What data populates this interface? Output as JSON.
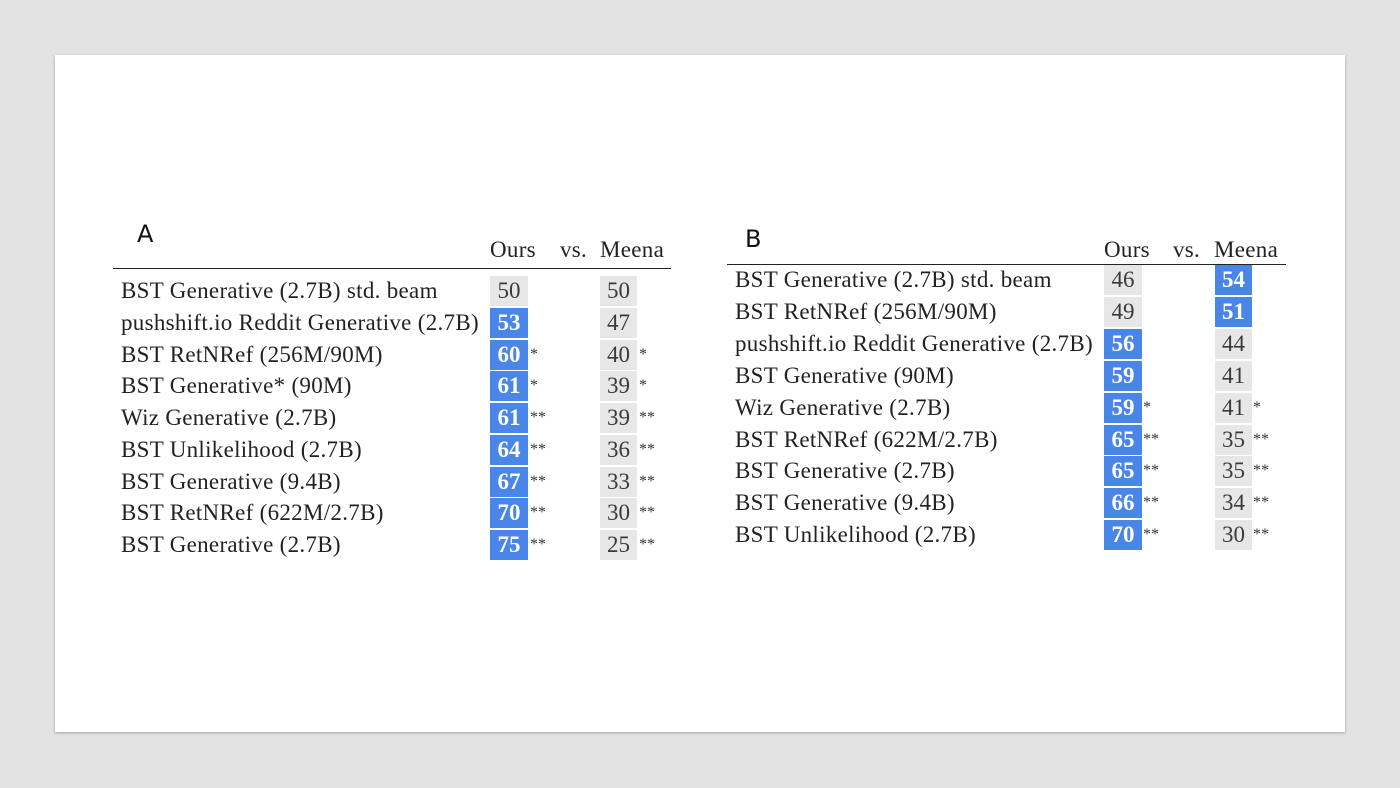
{
  "colors": {
    "background": "#e3e3e3",
    "card": "#ffffff",
    "highlight": "#4a86e8",
    "neutral": "#e7e7e7"
  },
  "table_a": {
    "label": "A",
    "headers": {
      "ours": "Ours",
      "vs": "vs.",
      "meena": "Meena"
    },
    "rows": [
      {
        "model": "BST Generative (2.7B) std. beam",
        "ours": 50,
        "meena": 50,
        "sig": "",
        "highlight": "none"
      },
      {
        "model": "pushshift.io Reddit Generative (2.7B)",
        "ours": 53,
        "meena": 47,
        "sig": "",
        "highlight": "ours"
      },
      {
        "model": "BST RetNRef (256M/90M)",
        "ours": 60,
        "meena": 40,
        "sig": "*",
        "highlight": "ours"
      },
      {
        "model": "BST Generative* (90M)",
        "ours": 61,
        "meena": 39,
        "sig": "*",
        "highlight": "ours"
      },
      {
        "model": "Wiz Generative (2.7B)",
        "ours": 61,
        "meena": 39,
        "sig": "**",
        "highlight": "ours"
      },
      {
        "model": "BST Unlikelihood (2.7B)",
        "ours": 64,
        "meena": 36,
        "sig": "**",
        "highlight": "ours"
      },
      {
        "model": "BST Generative (9.4B)",
        "ours": 67,
        "meena": 33,
        "sig": "**",
        "highlight": "ours"
      },
      {
        "model": "BST RetNRef (622M/2.7B)",
        "ours": 70,
        "meena": 30,
        "sig": "**",
        "highlight": "ours"
      },
      {
        "model": "BST Generative (2.7B)",
        "ours": 75,
        "meena": 25,
        "sig": "**",
        "highlight": "ours"
      }
    ]
  },
  "table_b": {
    "label": "B",
    "headers": {
      "ours": "Ours",
      "vs": "vs.",
      "meena": "Meena"
    },
    "rows": [
      {
        "model": "BST Generative (2.7B) std. beam",
        "ours": 46,
        "meena": 54,
        "sig": "",
        "highlight": "meena"
      },
      {
        "model": "BST RetNRef (256M/90M)",
        "ours": 49,
        "meena": 51,
        "sig": "",
        "highlight": "meena"
      },
      {
        "model": "pushshift.io Reddit Generative (2.7B)",
        "ours": 56,
        "meena": 44,
        "sig": "",
        "highlight": "ours"
      },
      {
        "model": "BST Generative (90M)",
        "ours": 59,
        "meena": 41,
        "sig": "",
        "highlight": "ours"
      },
      {
        "model": "Wiz Generative (2.7B)",
        "ours": 59,
        "meena": 41,
        "sig": "*",
        "highlight": "ours"
      },
      {
        "model": "BST RetNRef (622M/2.7B)",
        "ours": 65,
        "meena": 35,
        "sig": "**",
        "highlight": "ours"
      },
      {
        "model": "BST Generative (2.7B)",
        "ours": 65,
        "meena": 35,
        "sig": "**",
        "highlight": "ours"
      },
      {
        "model": "BST Generative (9.4B)",
        "ours": 66,
        "meena": 34,
        "sig": "**",
        "highlight": "ours"
      },
      {
        "model": "BST Unlikelihood (2.7B)",
        "ours": 70,
        "meena": 30,
        "sig": "**",
        "highlight": "ours"
      }
    ]
  }
}
